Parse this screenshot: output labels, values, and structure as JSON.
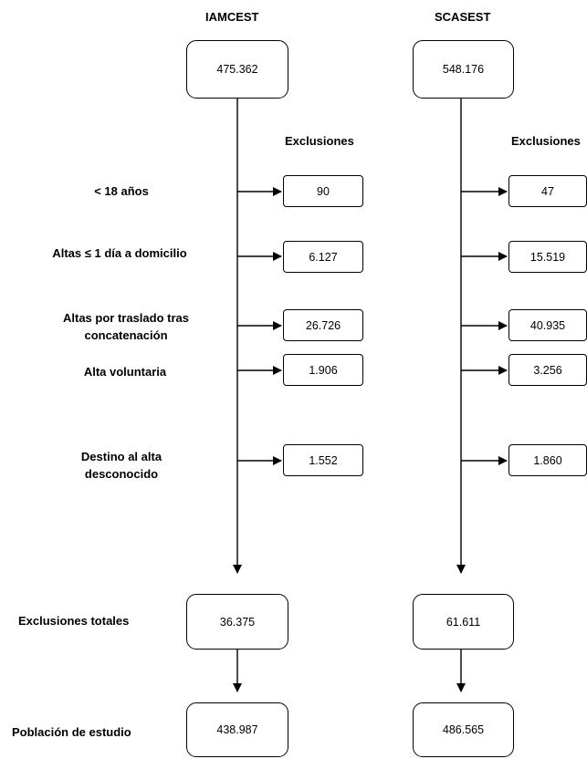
{
  "columns": [
    {
      "title": "IAMCEST",
      "initial": "475.362",
      "exclusions_header": "Exclusiones",
      "exclusions": [
        "90",
        "6.127",
        "26.726",
        "1.906",
        "1.552"
      ],
      "total": "36.375",
      "study": "438.987"
    },
    {
      "title": "SCASEST",
      "initial": "548.176",
      "exclusions_header": "Exclusiones",
      "exclusions": [
        "47",
        "15.519",
        "40.935",
        "3.256",
        "1.860"
      ],
      "total": "61.611",
      "study": "486.565"
    }
  ],
  "criteria": [
    "< 18 años",
    "Altas ≤ 1 día a domicilio",
    "Altas por traslado tras concatenación",
    "Alta voluntaria",
    "Destino al alta desconocido"
  ],
  "totals_label": "Exclusiones totales",
  "study_label": "Población de estudio"
}
